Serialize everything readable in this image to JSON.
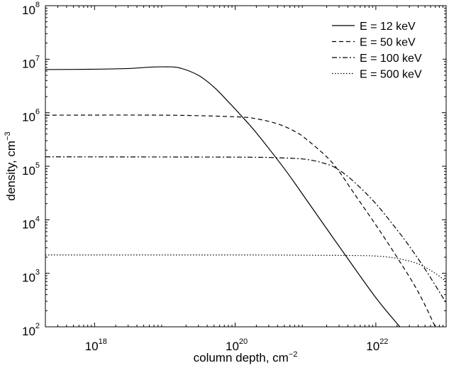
{
  "chart_data": {
    "type": "line",
    "title": "",
    "xlabel": "column depth, cm",
    "xlabel_exp": "−2",
    "ylabel": "density, cm",
    "ylabel_exp": "−3",
    "xscale": "log",
    "yscale": "log",
    "xlim": [
      2e+17,
      1e+23
    ],
    "ylim": [
      100.0,
      100000000.0
    ],
    "grid": false,
    "legend_position": "top-right",
    "x_ticks": [
      {
        "value": 1e+18,
        "base": "10",
        "exp": "18"
      },
      {
        "value": 1e+20,
        "base": "10",
        "exp": "20"
      },
      {
        "value": 1e+22,
        "base": "10",
        "exp": "22"
      }
    ],
    "y_ticks": [
      {
        "value": 100.0,
        "base": "10",
        "exp": "2"
      },
      {
        "value": 1000.0,
        "base": "10",
        "exp": "3"
      },
      {
        "value": 10000.0,
        "base": "10",
        "exp": "4"
      },
      {
        "value": 100000.0,
        "base": "10",
        "exp": "5"
      },
      {
        "value": 1000000.0,
        "base": "10",
        "exp": "6"
      },
      {
        "value": 10000000.0,
        "base": "10",
        "exp": "7"
      },
      {
        "value": 100000000.0,
        "base": "10",
        "exp": "8"
      }
    ],
    "series": [
      {
        "name": "E = 12 keV",
        "dash": "solid",
        "color": "#000000",
        "points": [
          [
            2e+17,
            6400000.0
          ],
          [
            1e+18,
            6500000.0
          ],
          [
            3e+18,
            6700000.0
          ],
          [
            6e+18,
            7100000.0
          ],
          [
            1e+19,
            7200000.0
          ],
          [
            1.6e+19,
            6900000.0
          ],
          [
            3e+19,
            5000000.0
          ],
          [
            5e+19,
            3000000.0
          ],
          [
            8e+19,
            1600000.0
          ],
          [
            1.2e+20,
            900000.0
          ],
          [
            2e+20,
            420000.0
          ],
          [
            5e+20,
            90000.0
          ],
          [
            1e+21,
            25000.0
          ],
          [
            3e+21,
            3200.0
          ],
          [
            1e+22,
            350.0
          ],
          [
            2.2e+22,
            100.0
          ]
        ]
      },
      {
        "name": "E = 50 keV",
        "dash": "dashed",
        "color": "#000000",
        "points": [
          [
            2e+17,
            900000.0
          ],
          [
            1e+19,
            900000.0
          ],
          [
            1e+20,
            840000.0
          ],
          [
            2e+20,
            770000.0
          ],
          [
            4e+20,
            620000.0
          ],
          [
            7e+20,
            450000.0
          ],
          [
            1e+21,
            330000.0
          ],
          [
            2e+21,
            150000.0
          ],
          [
            3e+21,
            80000.0
          ],
          [
            5e+21,
            30000.0
          ],
          [
            1e+22,
            8000.0
          ],
          [
            2e+22,
            2000.0
          ],
          [
            4e+22,
            450.0
          ],
          [
            7e+22,
            100.0
          ]
        ]
      },
      {
        "name": "E = 100 keV",
        "dash": "dashdot",
        "color": "#000000",
        "points": [
          [
            2e+17,
            150000.0
          ],
          [
            1e+20,
            148000.0
          ],
          [
            4e+20,
            144000.0
          ],
          [
            1e+21,
            135000.0
          ],
          [
            2e+21,
            110000.0
          ],
          [
            3e+21,
            85000.0
          ],
          [
            5e+21,
            50000.0
          ],
          [
            1e+22,
            20000.0
          ],
          [
            2e+22,
            6500.0
          ],
          [
            3e+22,
            3200.0
          ],
          [
            5e+22,
            1200.0
          ],
          [
            8e+22,
            450.0
          ],
          [
            1e+23,
            280.0
          ]
        ]
      },
      {
        "name": "E = 500 keV",
        "dash": "dotted",
        "color": "#000000",
        "points": [
          [
            2e+17,
            2200.0
          ],
          [
            1e+20,
            2200.0
          ],
          [
            1e+21,
            2180.0
          ],
          [
            5e+21,
            2150.0
          ],
          [
            1e+22,
            2100.0
          ],
          [
            2e+22,
            1900.0
          ],
          [
            4e+22,
            1500.0
          ],
          [
            7e+22,
            1000.0
          ],
          [
            1e+23,
            700.0
          ]
        ]
      }
    ]
  }
}
